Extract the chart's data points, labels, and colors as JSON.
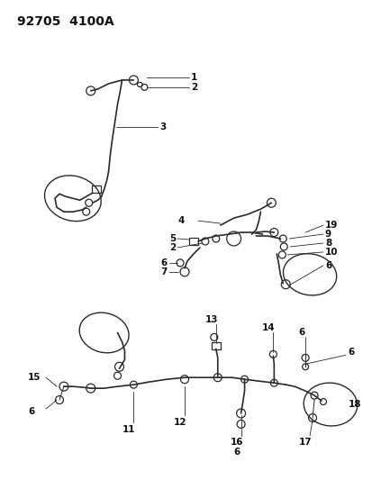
{
  "title_code": "92705  4100A",
  "bg_color": "#ffffff",
  "line_color": "#2a2a2a",
  "text_color": "#111111",
  "title_fontsize": 10,
  "label_fontsize": 7.5,
  "fig_width": 4.14,
  "fig_height": 5.33,
  "dpi": 100
}
